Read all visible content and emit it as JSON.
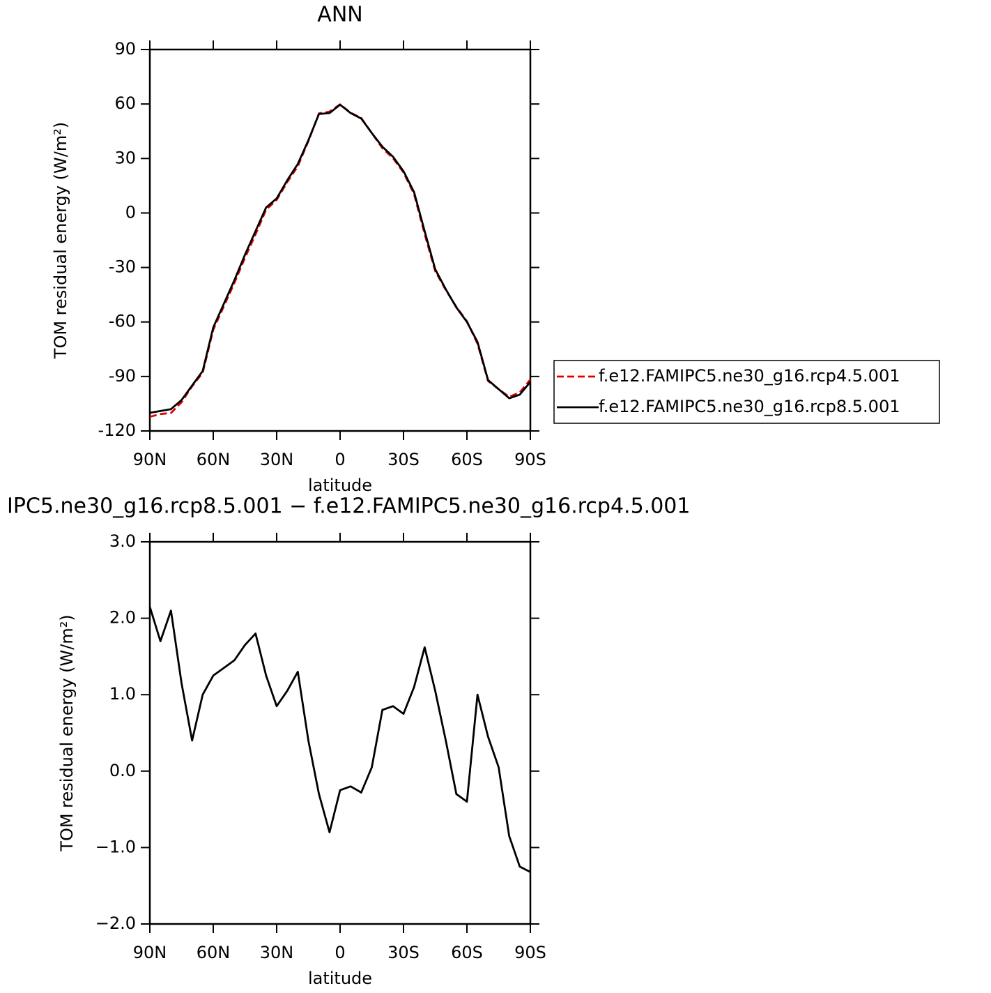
{
  "chart_data": [
    {
      "type": "line",
      "title": "ANN",
      "x_label": "latitude",
      "y_label": "TOM residual energy (W/m²)",
      "x": [
        90,
        85,
        80,
        75,
        70,
        65,
        60,
        55,
        50,
        45,
        40,
        35,
        30,
        25,
        20,
        15,
        10,
        5,
        0,
        -5,
        -10,
        -15,
        -20,
        -25,
        -30,
        -35,
        -40,
        -45,
        -50,
        -55,
        -60,
        -65,
        -70,
        -75,
        -80,
        -85,
        -90
      ],
      "series": [
        {
          "name": "f.e12.FAMIPC5.ne30_g16.rcp4.5.001",
          "color": "#e00000",
          "dash": true,
          "values": [
            -112.2,
            -110.7,
            -110.1,
            -104.2,
            -95.4,
            -88,
            -64.3,
            -51.4,
            -38.5,
            -24.7,
            -11.8,
            1.8,
            7.2,
            17,
            25.7,
            39.6,
            54.8,
            55.8,
            59.8,
            55.2,
            52.3,
            44,
            35.7,
            30.2,
            22.3,
            10.4,
            -11.6,
            -32,
            -42.4,
            -51.7,
            -59.6,
            -72,
            -92.5,
            -97,
            -101.2,
            -98.8,
            -91.7
          ]
        },
        {
          "name": "f.e12.FAMIPC5.ne30_g16.rcp8.5.001",
          "color": "#000000",
          "dash": false,
          "values": [
            -110,
            -109,
            -108,
            -103,
            -95,
            -87,
            -63,
            -50,
            -37,
            -23,
            -10,
            3,
            8,
            18,
            27,
            40,
            54.5,
            55,
            59.6,
            55,
            52,
            44,
            36.5,
            31,
            23,
            11.5,
            -10,
            -31,
            -42,
            -52,
            -60,
            -71,
            -92,
            -97,
            -102,
            -100,
            -93
          ]
        }
      ],
      "xlim": [
        90,
        -90
      ],
      "xticks": [
        {
          "value": 90,
          "label": "90N"
        },
        {
          "value": 60,
          "label": "60N"
        },
        {
          "value": 30,
          "label": "30N"
        },
        0,
        {
          "value": -30,
          "label": "30S"
        },
        {
          "value": -60,
          "label": "60S"
        },
        {
          "value": -90,
          "label": "90S"
        }
      ],
      "ylim": [
        -120,
        90
      ],
      "yticks": [
        90,
        60,
        30,
        0,
        -30,
        -60,
        -90,
        -120
      ],
      "legend": "right"
    },
    {
      "type": "line",
      "title": "IPC5.ne30_g16.rcp8.5.001 − f.e12.FAMIPC5.ne30_g16.rcp4.5.001",
      "x_label": "latitude",
      "y_label": "TOM residual energy (W/m²)",
      "x": [
        90,
        85,
        80,
        75,
        70,
        65,
        60,
        55,
        50,
        45,
        40,
        35,
        30,
        25,
        20,
        15,
        10,
        5,
        0,
        -5,
        -10,
        -15,
        -20,
        -25,
        -30,
        -35,
        -40,
        -45,
        -50,
        -55,
        -60,
        -65,
        -70,
        -75,
        -80,
        -85,
        -90
      ],
      "series": [
        {
          "color": "#000000",
          "dash": false,
          "values": [
            2.15,
            1.7,
            2.1,
            1.15,
            0.4,
            1.0,
            1.25,
            1.35,
            1.45,
            1.65,
            1.8,
            1.25,
            0.85,
            1.05,
            1.3,
            0.4,
            -0.3,
            -0.8,
            -0.25,
            -0.2,
            -0.28,
            0.05,
            0.8,
            0.85,
            0.75,
            1.1,
            1.62,
            1.05,
            0.4,
            -0.3,
            -0.4,
            1.0,
            0.45,
            0.05,
            -0.85,
            -1.25,
            -1.32
          ]
        }
      ],
      "xlim": [
        90,
        -90
      ],
      "xticks": [
        {
          "value": 90,
          "label": "90N"
        },
        {
          "value": 60,
          "label": "60N"
        },
        {
          "value": 30,
          "label": "30N"
        },
        0,
        {
          "value": -30,
          "label": "30S"
        },
        {
          "value": -60,
          "label": "60S"
        },
        {
          "value": -90,
          "label": "90S"
        }
      ],
      "ylim": [
        -2,
        3
      ],
      "yticks": [
        {
          "value": 3,
          "label": "3.0"
        },
        {
          "value": 2,
          "label": "2.0"
        },
        {
          "value": 1,
          "label": "1.0"
        },
        {
          "value": 0,
          "label": "0.0"
        },
        {
          "value": -1,
          "label": "−1.0"
        },
        {
          "value": -2,
          "label": "−2.0"
        }
      ]
    }
  ]
}
